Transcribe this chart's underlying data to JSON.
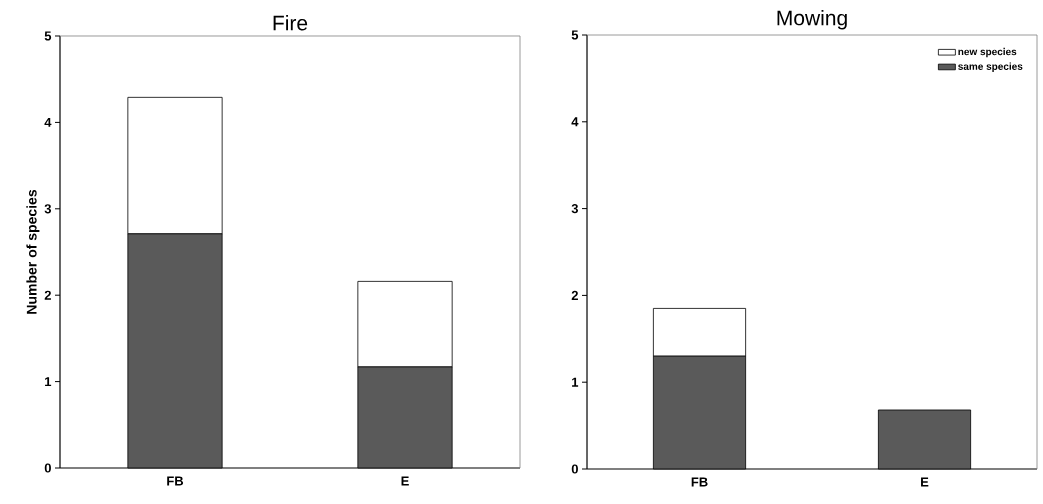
{
  "chart_data": [
    {
      "type": "bar",
      "title": "Fire",
      "ylabel": "Number of species",
      "categories": [
        "FB",
        "E"
      ],
      "stacked": true,
      "ylim": [
        0,
        5
      ],
      "yticks": [
        0,
        1,
        2,
        3,
        4,
        5
      ],
      "grid": false,
      "series": [
        {
          "color": "#5a5a5a",
          "values": [
            2.71,
            1.17
          ]
        },
        {
          "color": "#ffffff",
          "values": [
            1.58,
            0.99
          ]
        }
      ]
    },
    {
      "type": "bar",
      "title": "Mowing",
      "categories": [
        "FB",
        "E"
      ],
      "stacked": true,
      "ylim": [
        0,
        5
      ],
      "yticks": [
        0,
        1,
        2,
        3,
        4,
        5
      ],
      "grid": false,
      "legend": "top right",
      "series": [
        {
          "name": "same species",
          "color": "#5a5a5a",
          "values": [
            1.3,
            0.68
          ]
        },
        {
          "name": "new species",
          "color": "#ffffff",
          "values": [
            0.55,
            0
          ]
        }
      ]
    }
  ]
}
